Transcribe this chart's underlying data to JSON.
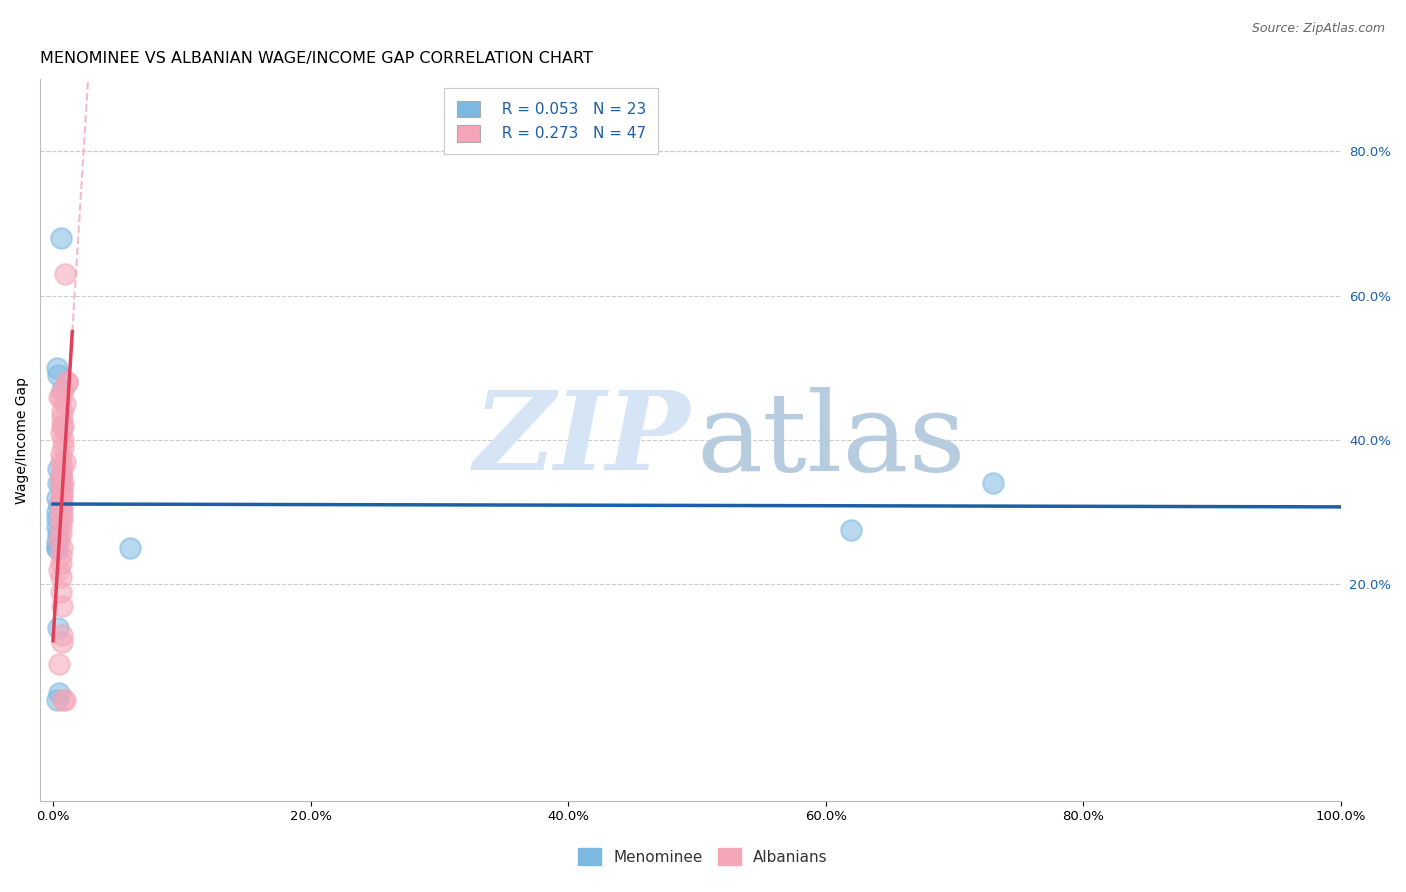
{
  "title": "MENOMINEE VS ALBANIAN WAGE/INCOME GAP CORRELATION CHART",
  "source": "Source: ZipAtlas.com",
  "ylabel": "Wage/Income Gap",
  "xlim": [
    -0.01,
    1.0
  ],
  "ylim": [
    -0.1,
    0.9
  ],
  "xticks": [
    0.0,
    0.2,
    0.4,
    0.6,
    0.8,
    1.0
  ],
  "xtick_labels": [
    "0.0%",
    "20.0%",
    "40.0%",
    "60.0%",
    "80.0%",
    "100.0%"
  ],
  "ytick_positions": [
    0.2,
    0.4,
    0.6,
    0.8
  ],
  "ytick_labels": [
    "20.0%",
    "40.0%",
    "60.0%",
    "80.0%"
  ],
  "menominee_color": "#7db8e0",
  "albanian_color": "#f4a5b8",
  "menominee_R": 0.053,
  "menominee_N": 23,
  "albanian_R": 0.273,
  "albanian_N": 47,
  "menominee_x": [
    0.006,
    0.003,
    0.004,
    0.007,
    0.004,
    0.006,
    0.006,
    0.004,
    0.003,
    0.005,
    0.003,
    0.003,
    0.003,
    0.004,
    0.003,
    0.003,
    0.003,
    0.06,
    0.004,
    0.73,
    0.003,
    0.62,
    0.005
  ],
  "menominee_y": [
    0.68,
    0.5,
    0.49,
    0.47,
    0.36,
    0.35,
    0.34,
    0.34,
    0.32,
    0.31,
    0.3,
    0.29,
    0.28,
    0.27,
    0.26,
    0.25,
    0.25,
    0.25,
    0.14,
    0.34,
    0.04,
    0.275,
    0.05
  ],
  "albanian_x": [
    0.009,
    0.011,
    0.011,
    0.005,
    0.006,
    0.009,
    0.007,
    0.007,
    0.007,
    0.008,
    0.006,
    0.008,
    0.008,
    0.006,
    0.009,
    0.006,
    0.007,
    0.006,
    0.006,
    0.008,
    0.006,
    0.007,
    0.007,
    0.006,
    0.007,
    0.007,
    0.006,
    0.006,
    0.007,
    0.006,
    0.006,
    0.006,
    0.005,
    0.007,
    0.006,
    0.006,
    0.005,
    0.006,
    0.006,
    0.007,
    0.007,
    0.007,
    0.005,
    0.008,
    0.009,
    0.007,
    0.008
  ],
  "albanian_y": [
    0.63,
    0.48,
    0.48,
    0.46,
    0.46,
    0.45,
    0.44,
    0.43,
    0.42,
    0.42,
    0.41,
    0.4,
    0.39,
    0.38,
    0.37,
    0.37,
    0.36,
    0.35,
    0.35,
    0.34,
    0.34,
    0.33,
    0.33,
    0.32,
    0.32,
    0.31,
    0.31,
    0.3,
    0.29,
    0.29,
    0.28,
    0.27,
    0.26,
    0.25,
    0.24,
    0.23,
    0.22,
    0.21,
    0.19,
    0.17,
    0.13,
    0.12,
    0.09,
    0.04,
    0.04,
    0.3,
    0.47
  ],
  "background_color": "#ffffff",
  "grid_color": "#cccccc",
  "blue_line_color": "#1a5fa8",
  "pink_line_color": "#e0405a",
  "pink_dash_color": "#f4a5b8",
  "title_fontsize": 11.5,
  "axis_label_fontsize": 10,
  "tick_fontsize": 9.5,
  "legend_fontsize": 11,
  "source_fontsize": 9,
  "menominee_label": "Menominee",
  "albanian_label": "Albanians",
  "watermark_zip": "ZIP",
  "watermark_atlas": "atlas",
  "zip_color": "#d5e5f5",
  "atlas_color": "#b8cce0"
}
